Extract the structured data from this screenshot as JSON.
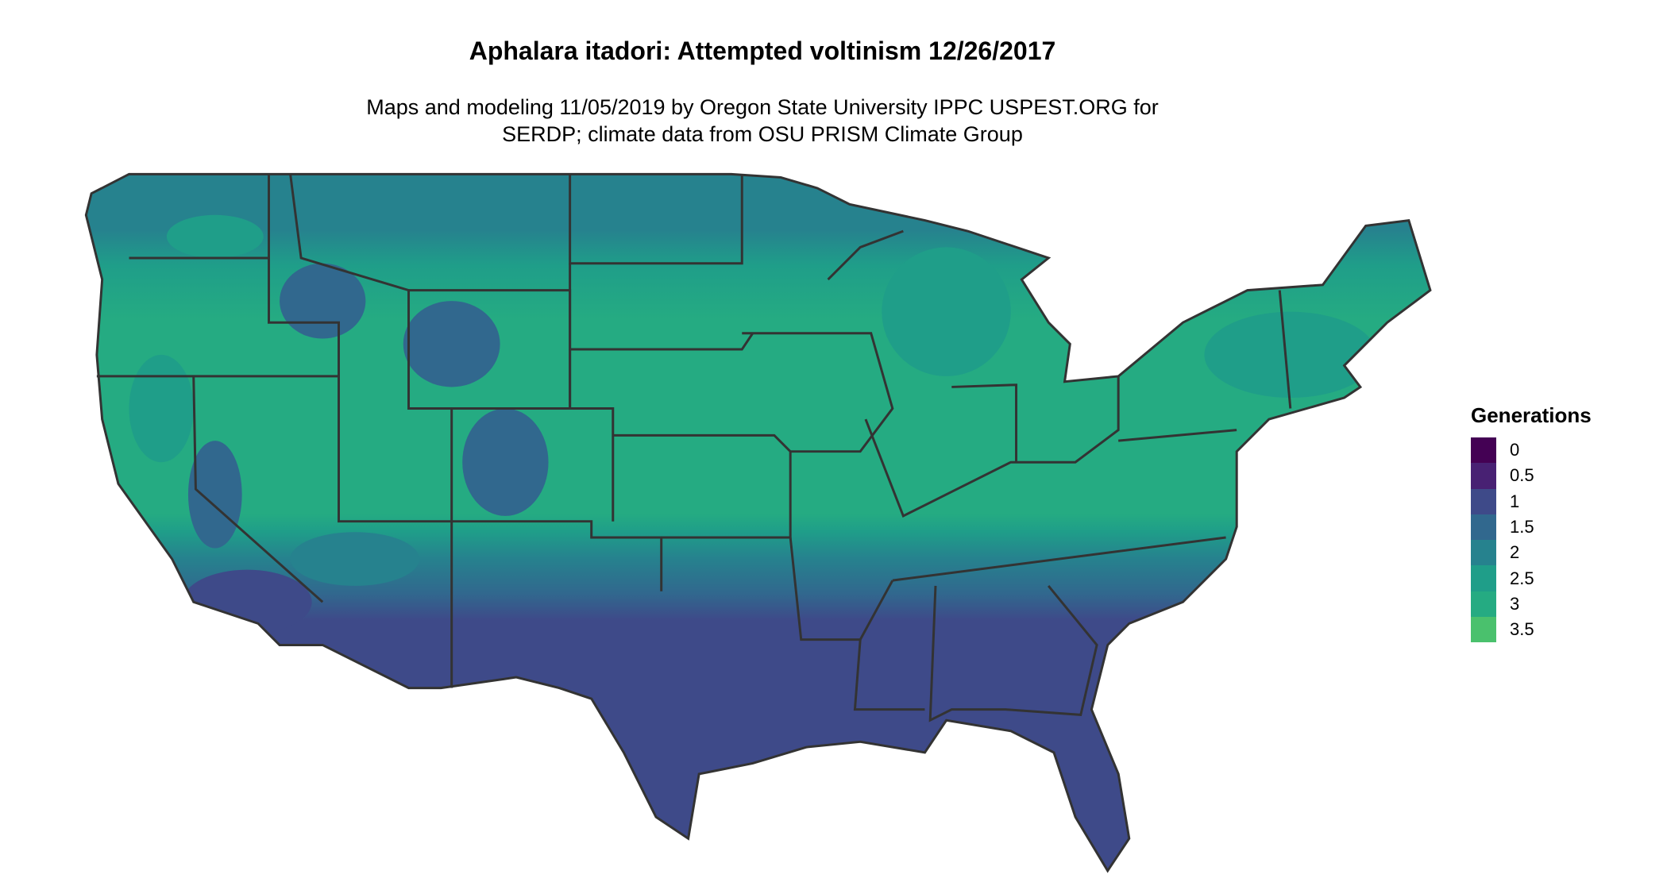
{
  "title": "Aphalara itadori: Attempted voltinism 12/26/2017",
  "subtitle_line1": "Maps and modeling 11/05/2019 by Oregon State University IPPC USPEST.ORG for",
  "subtitle_line2": "SERDP; climate data from OSU PRISM Climate Group",
  "legend": {
    "title": "Generations",
    "items": [
      {
        "label": "0",
        "color": "#440154"
      },
      {
        "label": "0.5",
        "color": "#482173"
      },
      {
        "label": "1",
        "color": "#3e4a89"
      },
      {
        "label": "1.5",
        "color": "#31688e"
      },
      {
        "label": "2",
        "color": "#26828e"
      },
      {
        "label": "2.5",
        "color": "#1f9e89"
      },
      {
        "label": "3",
        "color": "#25ab82"
      },
      {
        "label": "3.5",
        "color": "#4ac16d"
      }
    ]
  },
  "map": {
    "region": "Contiguous United States",
    "state_border_color": "#333333",
    "general_pattern": {
      "south": "1",
      "southern_mid": "1.5-2",
      "central_plains_midwest": "3",
      "north_and_mountains": "2-2.5"
    }
  }
}
